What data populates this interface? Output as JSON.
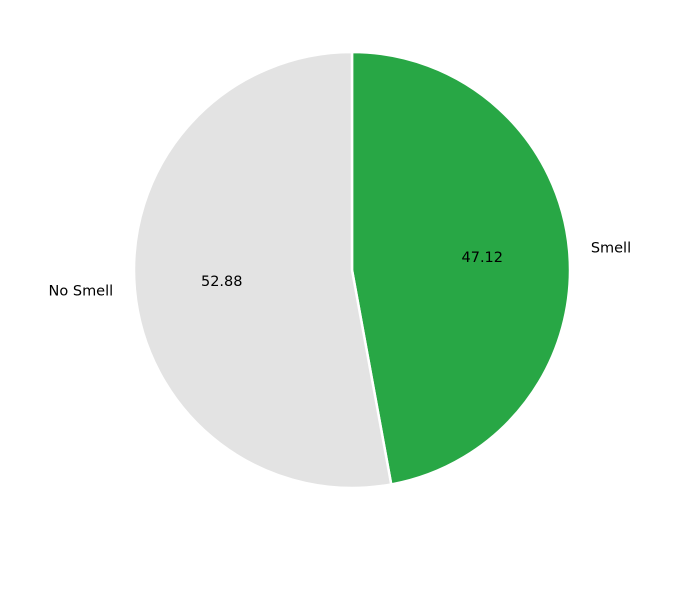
{
  "chart_data": {
    "type": "pie",
    "title": "",
    "start_angle": 90,
    "direction": "clockwise",
    "value_format": "percent_two_decimals",
    "slices": [
      {
        "label": "Smell",
        "value": 47.12,
        "color": "#28a745"
      },
      {
        "label": "No Smell",
        "value": 52.88,
        "color": "#e3e3e3"
      }
    ]
  }
}
